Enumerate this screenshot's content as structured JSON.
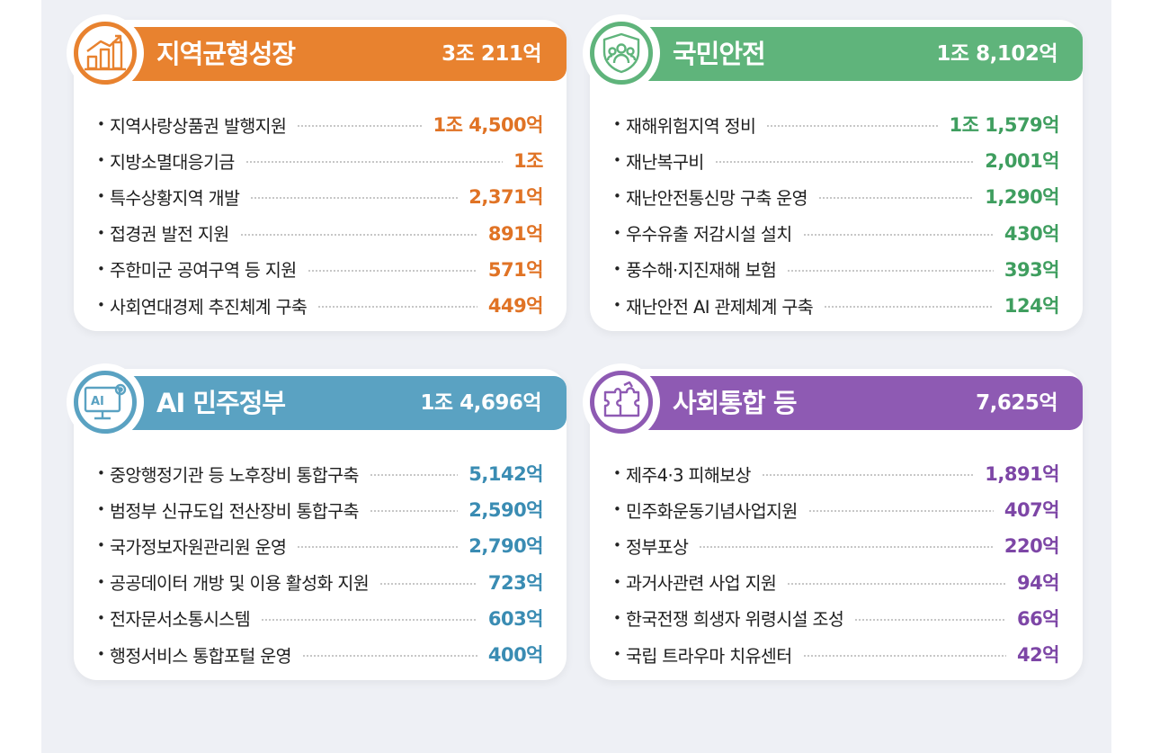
{
  "cards": [
    {
      "title": "지역균형성장",
      "total": "3조 211억",
      "color": "#e8822f",
      "icon": "growth-chart-icon",
      "items": [
        {
          "label": "지역사랑상품권 발행지원",
          "value": "1조 4,500억"
        },
        {
          "label": "지방소멸대응기금",
          "value": "1조"
        },
        {
          "label": "특수상황지역 개발",
          "value": "2,371억"
        },
        {
          "label": "접경권 발전 지원",
          "value": "891억"
        },
        {
          "label": "주한미군 공여구역 등 지원",
          "value": "571억"
        },
        {
          "label": "사회연대경제 추진체계 구축",
          "value": "449억"
        }
      ]
    },
    {
      "title": "국민안전",
      "total": "1조 8,102억",
      "color": "#5fb47b",
      "icon": "people-shield-icon",
      "items": [
        {
          "label": "재해위험지역 정비",
          "value": "1조 1,579억"
        },
        {
          "label": "재난복구비",
          "value": "2,001억"
        },
        {
          "label": "재난안전통신망 구축 운영",
          "value": "1,290억"
        },
        {
          "label": "우수유출 저감시설 설치",
          "value": "430억"
        },
        {
          "label": "풍수해·지진재해 보험",
          "value": "393억"
        },
        {
          "label": "재난안전 AI 관제체계 구축",
          "value": "124억"
        }
      ]
    },
    {
      "title": "AI 민주정부",
      "total": "1조 4,696억",
      "color": "#5aa2c2",
      "icon": "ai-monitor-icon",
      "icon_text": "AI",
      "items": [
        {
          "label": "중앙행정기관 등 노후장비 통합구축",
          "value": "5,142억"
        },
        {
          "label": "범정부 신규도입 전산장비 통합구축",
          "value": "2,590억"
        },
        {
          "label": "국가정보자원관리원 운영",
          "value": "2,790억"
        },
        {
          "label": "공공데이터 개방 및 이용 활성화 지원",
          "value": "723억"
        },
        {
          "label": "전자문서소통시스템",
          "value": "603억"
        },
        {
          "label": "행정서비스 통합포털 운영",
          "value": "400억"
        }
      ]
    },
    {
      "title": "사회통합 등",
      "total": "7,625억",
      "color": "#8e5ab3",
      "icon": "puzzle-icon",
      "items": [
        {
          "label": "제주4·3 피해보상",
          "value": "1,891억"
        },
        {
          "label": "민주화운동기념사업지원",
          "value": "407억"
        },
        {
          "label": "정부포상",
          "value": "220억"
        },
        {
          "label": "과거사관련 사업 지원",
          "value": "94억"
        },
        {
          "label": "한국전쟁 희생자 위령시설 조성",
          "value": "66억"
        },
        {
          "label": "국립 트라우마 치유센터",
          "value": "42억"
        }
      ]
    }
  ]
}
